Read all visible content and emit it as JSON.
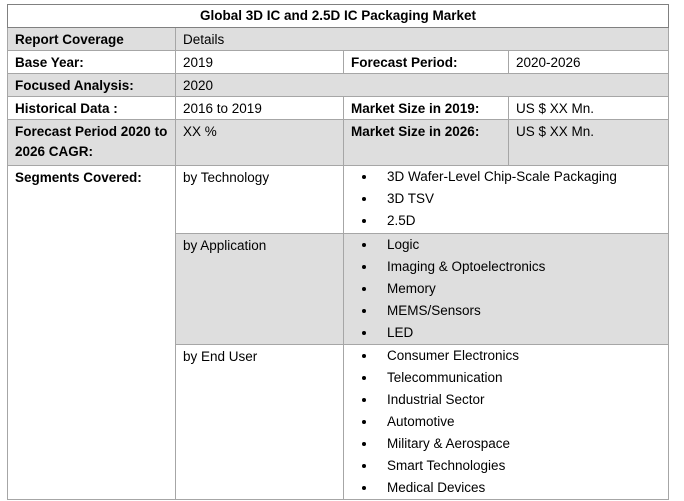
{
  "title": "Global 3D IC and 2.5D IC Packaging Market",
  "rows": [
    [
      "Report Coverage",
      "Details"
    ],
    [
      "Base Year:",
      "2019",
      "Forecast Period:",
      "2020-2026"
    ],
    [
      "Focused Analysis:",
      "2020"
    ],
    [
      "Historical Data :",
      "2016 to 2019",
      "Market Size in 2019:",
      "US $ XX Mn."
    ],
    [
      "Forecast Period 2020 to 2026 CAGR:",
      "XX %",
      "Market Size in 2026:",
      "US $ XX Mn."
    ]
  ],
  "segments": {
    "label": "Segments Covered:",
    "groups": [
      {
        "name": "by Technology",
        "items": [
          "3D Wafer-Level Chip-Scale Packaging",
          "3D TSV",
          "2.5D"
        ]
      },
      {
        "name": "by Application",
        "items": [
          "Logic",
          "Imaging & Optoelectronics",
          "Memory",
          "MEMS/Sensors",
          "LED"
        ]
      },
      {
        "name": "by End User",
        "items": [
          "Consumer Electronics",
          "Telecommunication",
          "Industrial Sector",
          "Automotive",
          "Military & Aerospace",
          "Smart Technologies",
          "Medical Devices"
        ]
      }
    ]
  }
}
